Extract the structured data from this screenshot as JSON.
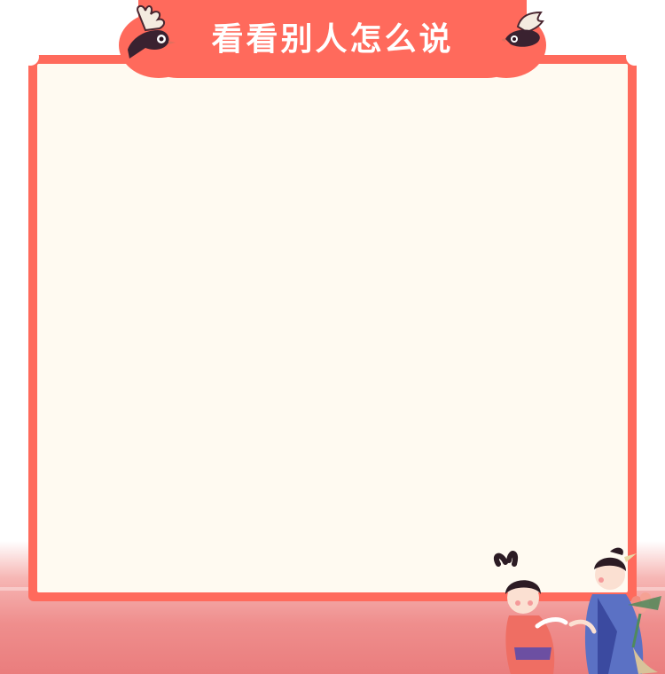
{
  "title": "看看别人怎么说",
  "colors": {
    "frame": "#ff6a5c",
    "panel": "#fffaf1",
    "floor": "#ef8e8d"
  },
  "decorations": {
    "left_bird": "magpie-icon",
    "right_bird": "magpie-icon",
    "figures": "couple-illustration"
  }
}
